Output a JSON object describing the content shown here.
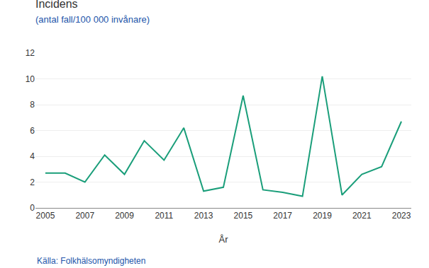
{
  "chart_data": {
    "type": "line",
    "title": "Incidens",
    "subtitle": "(antal fall/100 000 invånare)",
    "x_label": "År",
    "source": "Källa: Folkhälsomyndigheten",
    "x": [
      2005,
      2006,
      2007,
      2008,
      2009,
      2010,
      2011,
      2012,
      2013,
      2014,
      2015,
      2016,
      2017,
      2018,
      2019,
      2020,
      2021,
      2022,
      2023
    ],
    "values": [
      2.7,
      2.7,
      2.0,
      4.1,
      2.6,
      5.2,
      3.7,
      6.2,
      1.3,
      1.6,
      8.7,
      1.4,
      1.2,
      0.9,
      10.2,
      1.0,
      2.6,
      3.2,
      6.7
    ],
    "color": "#1a9e7a",
    "xlim": [
      2004.5,
      2023.5
    ],
    "xticks": [
      2005,
      2007,
      2009,
      2011,
      2013,
      2015,
      2017,
      2019,
      2021,
      2023
    ],
    "ylim": [
      0,
      12
    ],
    "yticks": [
      0,
      2,
      4,
      6,
      8,
      10,
      12
    ],
    "grid": true
  }
}
